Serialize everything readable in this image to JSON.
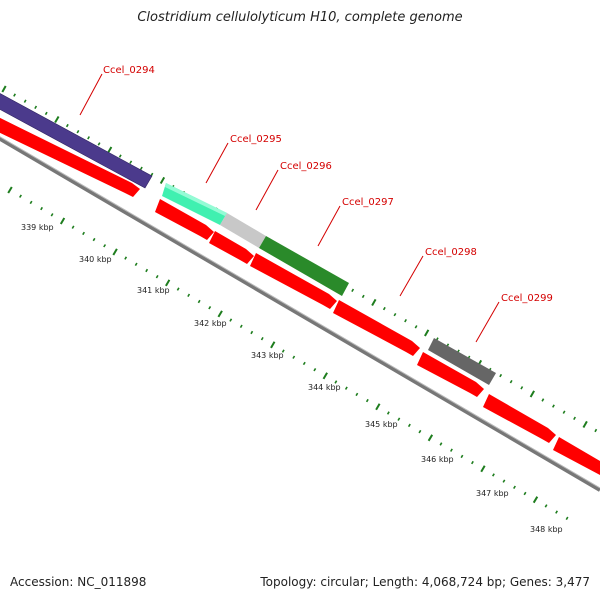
{
  "title": "Clostridium cellulolyticum H10, complete genome",
  "accession": "Accession: NC_011898",
  "summary": "Topology: circular; Length: 4,068,724 bp; Genes: 3,477",
  "colors": {
    "cds": "#ff0000",
    "backbone": "#888888",
    "tick": "#1e7d1e",
    "label": "#d40000",
    "Ccel_0294": "#4b3a8c",
    "Ccel_0295": "#40f0b0",
    "Ccel_0296": "#c8c8c8",
    "Ccel_0297": "#2a8a2a",
    "Ccel_0298": "#ff0000",
    "Ccel_0299": "#666666"
  },
  "genes": [
    {
      "name": "Ccel_0294"
    },
    {
      "name": "Ccel_0295"
    },
    {
      "name": "Ccel_0296"
    },
    {
      "name": "Ccel_0297"
    },
    {
      "name": "Ccel_0298"
    },
    {
      "name": "Ccel_0299"
    }
  ],
  "scale": [
    "339 kbp",
    "340 kbp",
    "341 kbp",
    "342 kbp",
    "343 kbp",
    "344 kbp",
    "345 kbp",
    "346 kbp",
    "347 kbp",
    "348 kbp"
  ]
}
